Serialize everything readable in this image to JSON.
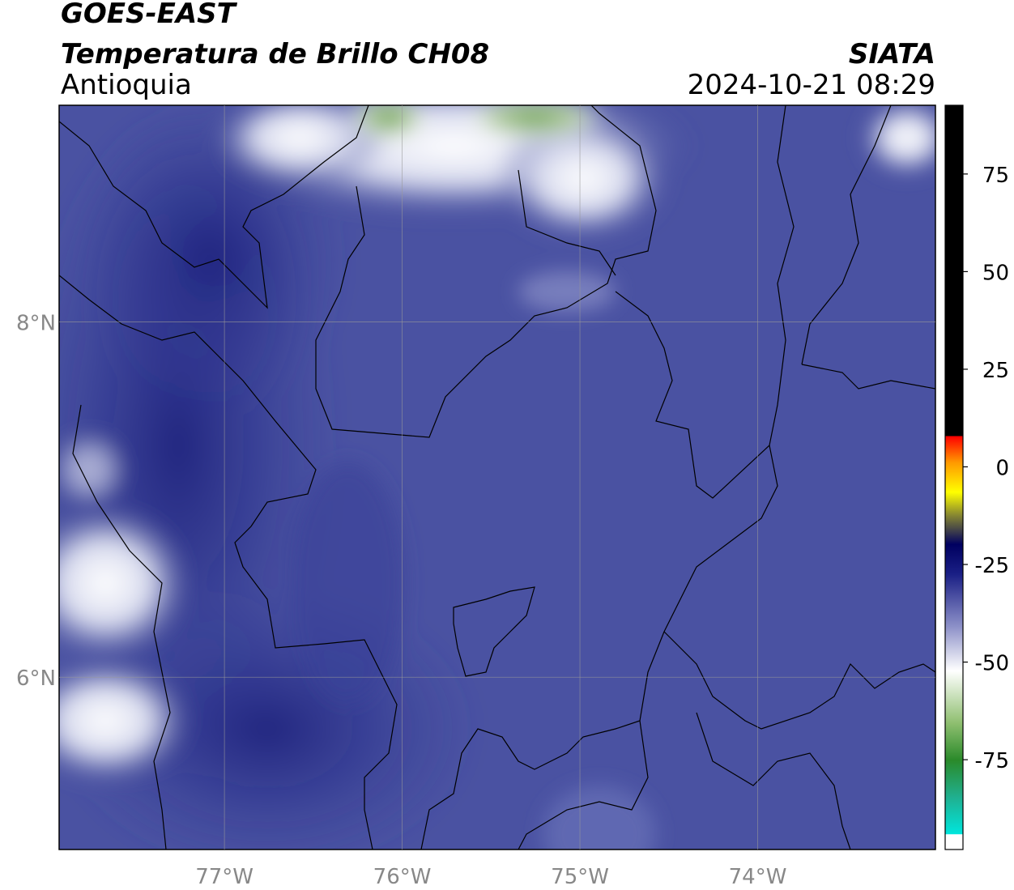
{
  "header": {
    "title": "GOES-EAST",
    "subtitle": "Temperatura de Brillo CH08",
    "region": "Antioquia",
    "source": "SIATA",
    "timestamp": "2024-10-21 08:29"
  },
  "map": {
    "xlim": [
      -77.93,
      -73.0
    ],
    "ylim": [
      5.03,
      9.22
    ],
    "xticks": [
      {
        "value": -77,
        "label": "77°W"
      },
      {
        "value": -76,
        "label": "76°W"
      },
      {
        "value": -75,
        "label": "75°W"
      },
      {
        "value": -74,
        "label": "74°W"
      }
    ],
    "yticks": [
      {
        "value": 6,
        "label": "6°N"
      },
      {
        "value": 8,
        "label": "8°N"
      }
    ],
    "grid": true
  },
  "colorbar": {
    "lim": [
      -98,
      92.6
    ],
    "ticks": [
      -75,
      -50,
      -25,
      0,
      25,
      50,
      75
    ]
  }
}
